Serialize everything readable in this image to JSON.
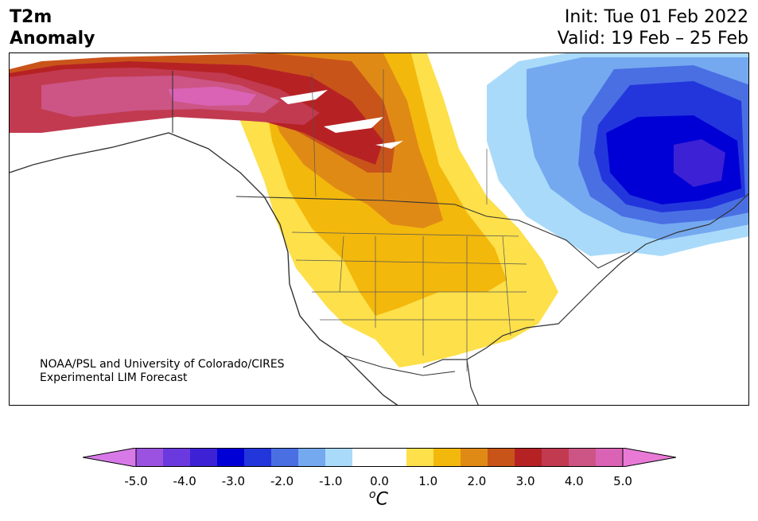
{
  "title": {
    "left_line1": "T2m",
    "left_line2": "Anomaly",
    "right_line1": "Init: Tue 01 Feb 2022",
    "right_line2": "Valid: 19 Feb – 25 Feb"
  },
  "credit": {
    "line1": "NOAA/PSL and University of Colorado/CIRES",
    "line2": "Experimental LIM Forecast"
  },
  "colorbar": {
    "unit_base": "C",
    "unit_sup": "o",
    "under_color": "#d77ae8",
    "over_color": "#e87ad6",
    "bins": [
      "#9b52e0",
      "#6a3adf",
      "#3c22d4",
      "#0000d6",
      "#2336dc",
      "#4a6fe3",
      "#74a9f0",
      "#a9dafa",
      "#ffffff",
      "#ffffff",
      "#fde04a",
      "#f3b80c",
      "#e08a16",
      "#c9541a",
      "#b62224",
      "#c23a50",
      "#cc5585",
      "#da63b6"
    ],
    "ticks": [
      "-5.0",
      "-4.0",
      "-3.0",
      "-2.0",
      "-1.0",
      "0.0",
      "1.0",
      "2.0",
      "3.0",
      "4.0",
      "5.0"
    ]
  },
  "map": {
    "region": "North America",
    "variable": "2 m temperature anomaly"
  }
}
